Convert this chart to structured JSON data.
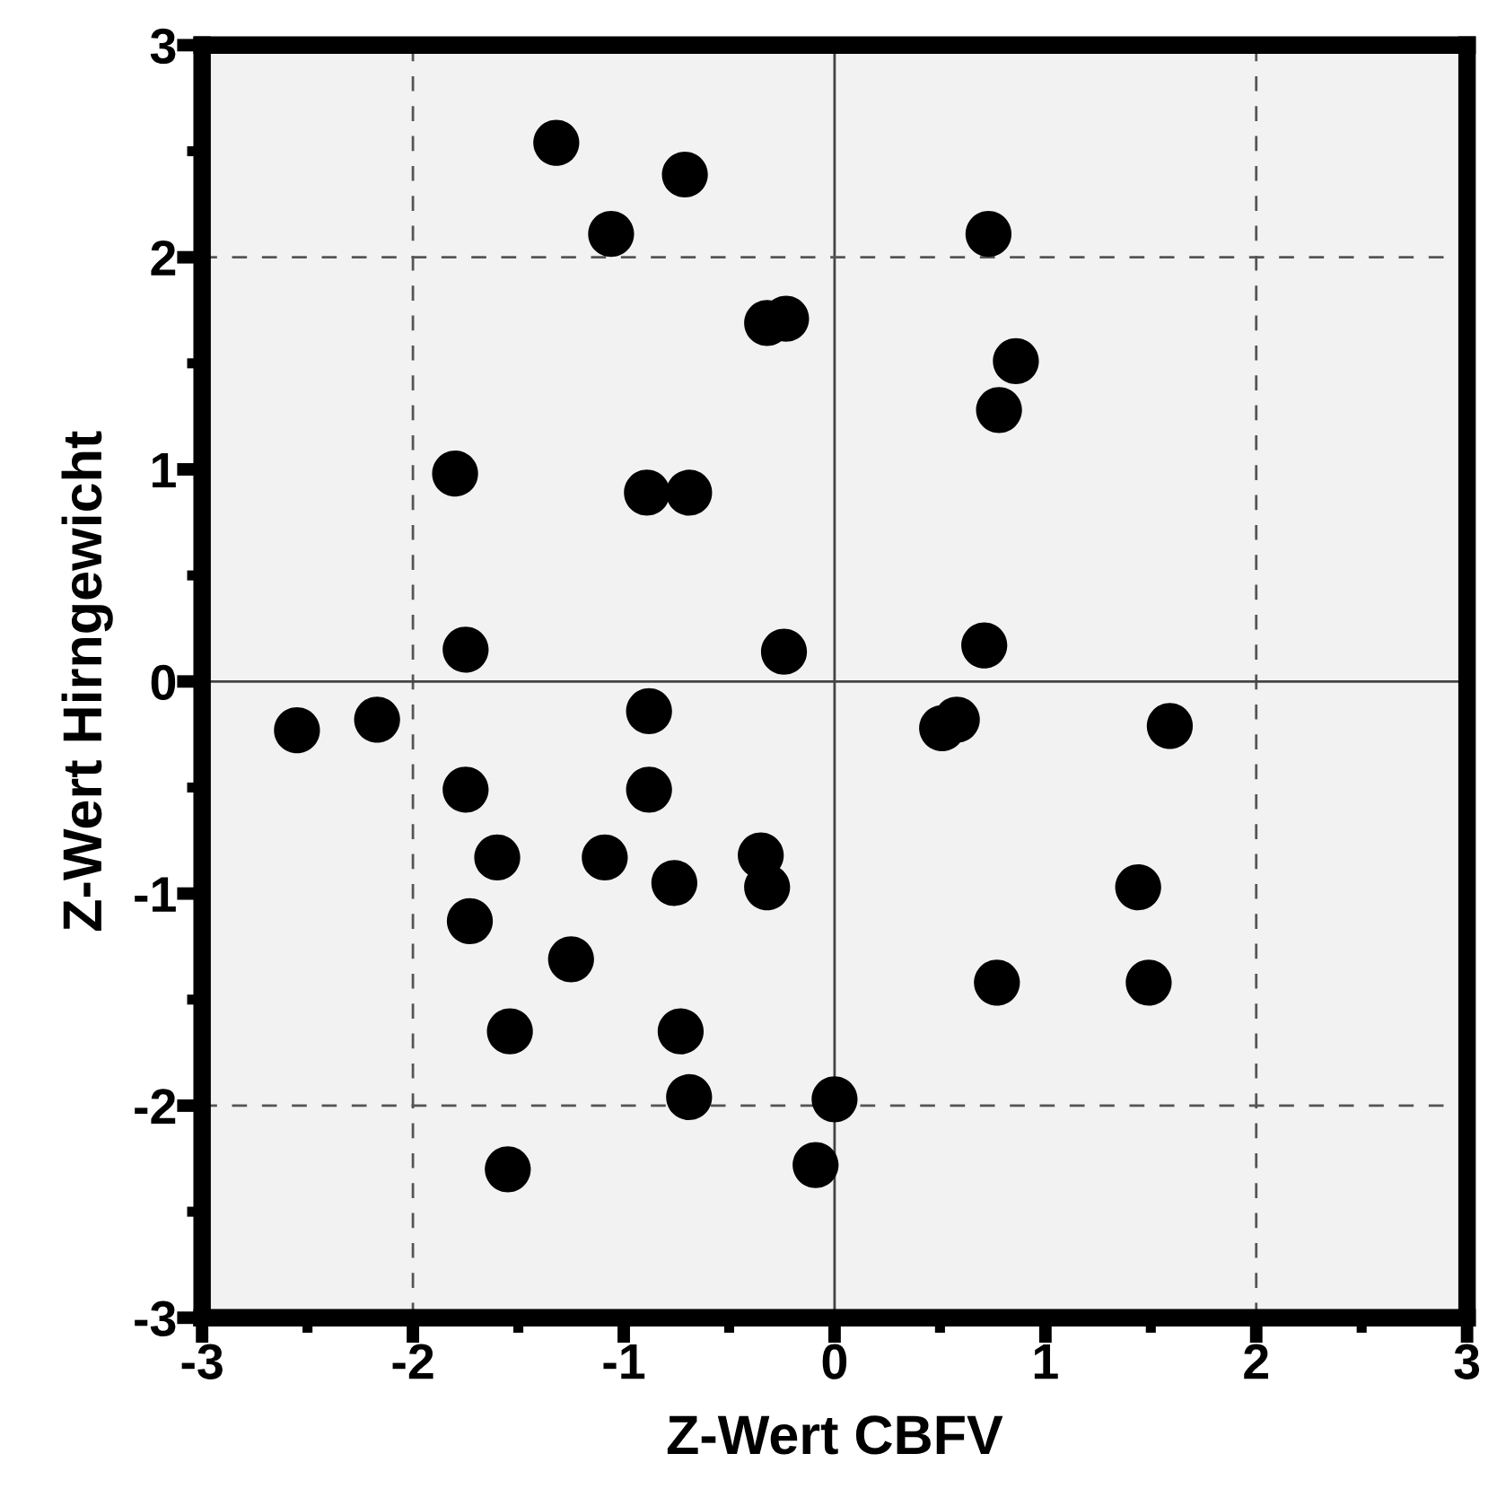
{
  "chart_data": {
    "type": "scatter",
    "xlabel": "Z-Wert CBFV",
    "ylabel": "Z-Wert Hirngewicht",
    "x": [
      -1.32,
      -0.71,
      -1.06,
      -0.32,
      -0.23,
      -1.8,
      -0.89,
      -0.69,
      -1.75,
      -0.24,
      0.73,
      0.86,
      0.78,
      0.71,
      -2.55,
      -2.17,
      -0.88,
      -1.75,
      -0.88,
      -1.6,
      -1.09,
      -0.76,
      -0.35,
      -0.32,
      -1.73,
      -1.25,
      -1.54,
      -0.73,
      -0.69,
      -1.55,
      0.0,
      -0.09,
      0.51,
      0.58,
      1.59,
      1.44,
      0.77,
      1.49
    ],
    "series": [
      {
        "color": "#000000",
        "values": [
          2.54,
          2.39,
          2.11,
          1.69,
          1.71,
          0.98,
          0.89,
          0.89,
          0.15,
          0.14,
          2.11,
          1.51,
          1.28,
          0.17,
          -0.23,
          -0.18,
          -0.14,
          -0.51,
          -0.51,
          -0.83,
          -0.83,
          -0.95,
          -0.82,
          -0.97,
          -1.13,
          -1.31,
          -1.65,
          -1.65,
          -1.96,
          -2.3,
          -1.97,
          -2.28,
          -0.22,
          -0.18,
          -0.21,
          -0.97,
          -1.42,
          -1.42
        ]
      }
    ],
    "xlim": [
      -3,
      3
    ],
    "ylim": [
      -3,
      3
    ],
    "xticks": [
      -3,
      -2,
      -1,
      0,
      1,
      2,
      3
    ],
    "yticks": [
      -3,
      -2,
      -1,
      0,
      1,
      2,
      3
    ],
    "grid": false,
    "marker": "circle",
    "ref_lines": [
      {
        "axis": "x",
        "value": -2,
        "line_style": "dashed"
      },
      {
        "axis": "x",
        "value": 0,
        "line_style": "solid"
      },
      {
        "axis": "x",
        "value": 2,
        "line_style": "dashed"
      },
      {
        "axis": "y",
        "value": -2,
        "line_style": "dashed"
      },
      {
        "axis": "y",
        "value": 0,
        "line_style": "solid"
      },
      {
        "axis": "y",
        "value": 2,
        "line_style": "dashed"
      }
    ]
  }
}
